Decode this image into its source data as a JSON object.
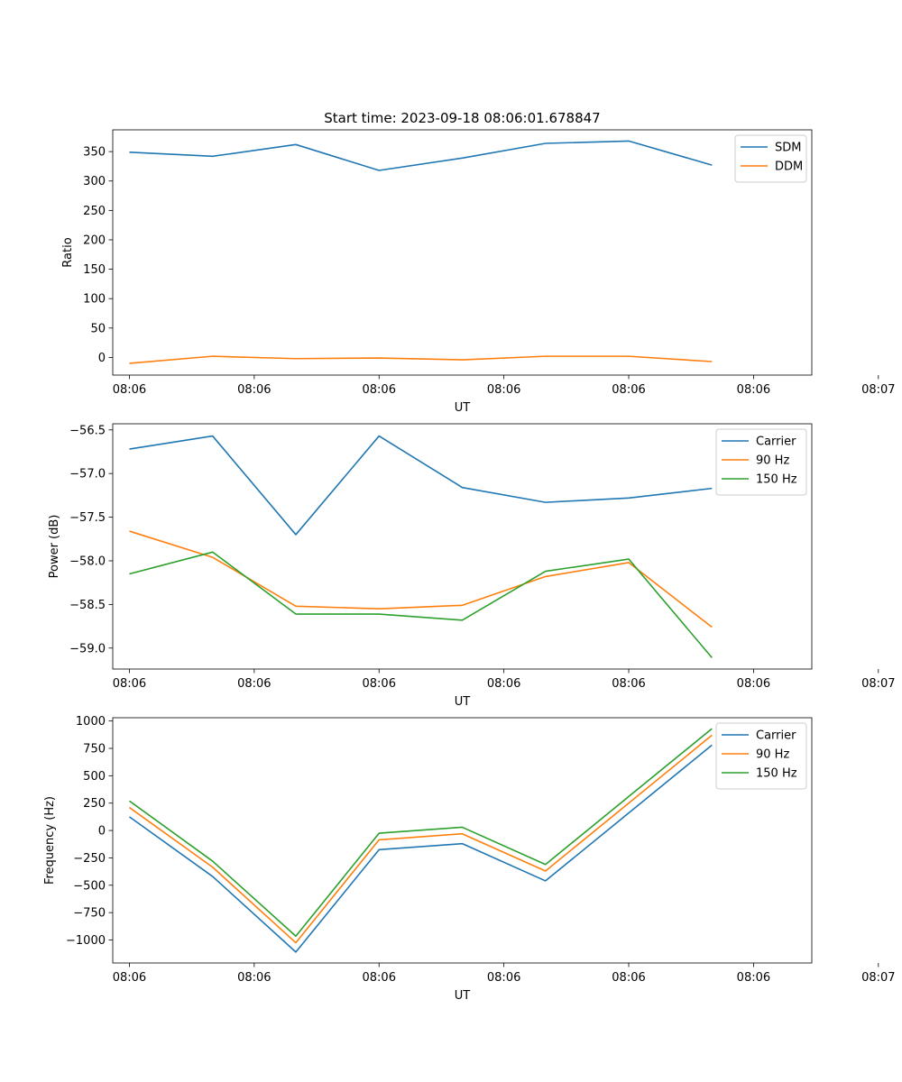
{
  "figure_title": "Start time: 2023-09-18 08:06:01.678847",
  "chart_data": [
    {
      "type": "line",
      "title": "Start time: 2023-09-18 08:06:01.678847",
      "xlabel": "UT",
      "ylabel": "Ratio",
      "x": [
        1,
        2,
        3,
        4,
        5,
        6,
        7,
        8
      ],
      "xlim": [
        0.8,
        9.2
      ],
      "xticks": [
        1,
        2.5,
        4,
        5.5,
        7,
        8.5,
        10
      ],
      "xtick_labels": [
        "08:06",
        "08:06",
        "08:06",
        "08:06",
        "08:06",
        "08:06",
        "08:07"
      ],
      "ylim": [
        -30,
        387
      ],
      "yticks": [
        0,
        50,
        100,
        150,
        200,
        250,
        300,
        350
      ],
      "ytick_labels": [
        "0",
        "50",
        "100",
        "150",
        "200",
        "250",
        "300",
        "350"
      ],
      "legend": "top-right",
      "series": [
        {
          "name": "SDM",
          "color": "#1f77b4",
          "values": [
            349,
            342,
            362,
            318,
            339,
            364,
            368,
            327
          ]
        },
        {
          "name": "DDM",
          "color": "#ff7f0e",
          "values": [
            -10,
            2,
            -2,
            -1,
            -4,
            2,
            2,
            -7
          ]
        }
      ]
    },
    {
      "type": "line",
      "title": "",
      "xlabel": "UT",
      "ylabel": "Power (dB)",
      "x": [
        1,
        2,
        3,
        4,
        5,
        6,
        7,
        8
      ],
      "xlim": [
        0.8,
        9.2
      ],
      "xticks": [
        1,
        2.5,
        4,
        5.5,
        7,
        8.5,
        10
      ],
      "xtick_labels": [
        "08:06",
        "08:06",
        "08:06",
        "08:06",
        "08:06",
        "08:06",
        "08:07"
      ],
      "ylim": [
        -59.24,
        -56.43
      ],
      "yticks": [
        -59.0,
        -58.5,
        -58.0,
        -57.5,
        -57.0,
        -56.5
      ],
      "ytick_labels": [
        "−59.0",
        "−58.5",
        "−58.0",
        "−57.5",
        "−57.0",
        "−56.5"
      ],
      "legend": "top-right",
      "series": [
        {
          "name": "Carrier",
          "color": "#1f77b4",
          "values": [
            -56.72,
            -56.57,
            -57.7,
            -56.57,
            -57.16,
            -57.33,
            -57.28,
            -57.17
          ]
        },
        {
          "name": "90 Hz",
          "color": "#ff7f0e",
          "values": [
            -57.66,
            -57.96,
            -58.52,
            -58.55,
            -58.51,
            -58.18,
            -58.02,
            -58.76
          ]
        },
        {
          "name": "150 Hz",
          "color": "#2ca02c",
          "values": [
            -58.15,
            -57.9,
            -58.61,
            -58.61,
            -58.68,
            -58.12,
            -57.98,
            -59.11
          ]
        }
      ]
    },
    {
      "type": "line",
      "title": "",
      "xlabel": "UT",
      "ylabel": "Frequency (Hz)",
      "x": [
        1,
        2,
        3,
        4,
        5,
        6,
        7,
        8
      ],
      "xlim": [
        0.8,
        9.2
      ],
      "xticks": [
        1,
        2.5,
        4,
        5.5,
        7,
        8.5,
        10
      ],
      "xtick_labels": [
        "08:06",
        "08:06",
        "08:06",
        "08:06",
        "08:06",
        "08:06",
        "08:07"
      ],
      "ylim": [
        -1210,
        1030
      ],
      "yticks": [
        -1000,
        -750,
        -500,
        -250,
        0,
        250,
        500,
        750,
        1000
      ],
      "ytick_labels": [
        "−1000",
        "−750",
        "−500",
        "−250",
        "0",
        "250",
        "500",
        "750",
        "1000"
      ],
      "legend": "top-right",
      "series": [
        {
          "name": "Carrier",
          "color": "#1f77b4",
          "values": [
            125,
            -420,
            -1110,
            -175,
            -120,
            -460,
            160,
            780
          ]
        },
        {
          "name": "90 Hz",
          "color": "#ff7f0e",
          "values": [
            210,
            -335,
            -1025,
            -85,
            -30,
            -370,
            250,
            870
          ]
        },
        {
          "name": "150 Hz",
          "color": "#2ca02c",
          "values": [
            270,
            -280,
            -965,
            -25,
            30,
            -310,
            310,
            930
          ]
        }
      ]
    }
  ]
}
